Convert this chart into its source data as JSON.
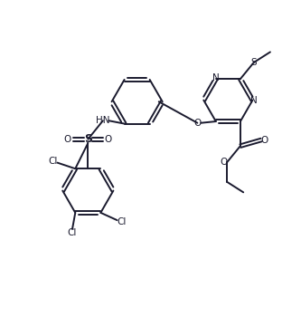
{
  "bg_color": "#ffffff",
  "line_color": "#1a1a2e",
  "bond_width": 1.4,
  "figsize": [
    3.33,
    3.5
  ],
  "dpi": 100,
  "xlim": [
    0,
    10
  ],
  "ylim": [
    0,
    10.5
  ]
}
